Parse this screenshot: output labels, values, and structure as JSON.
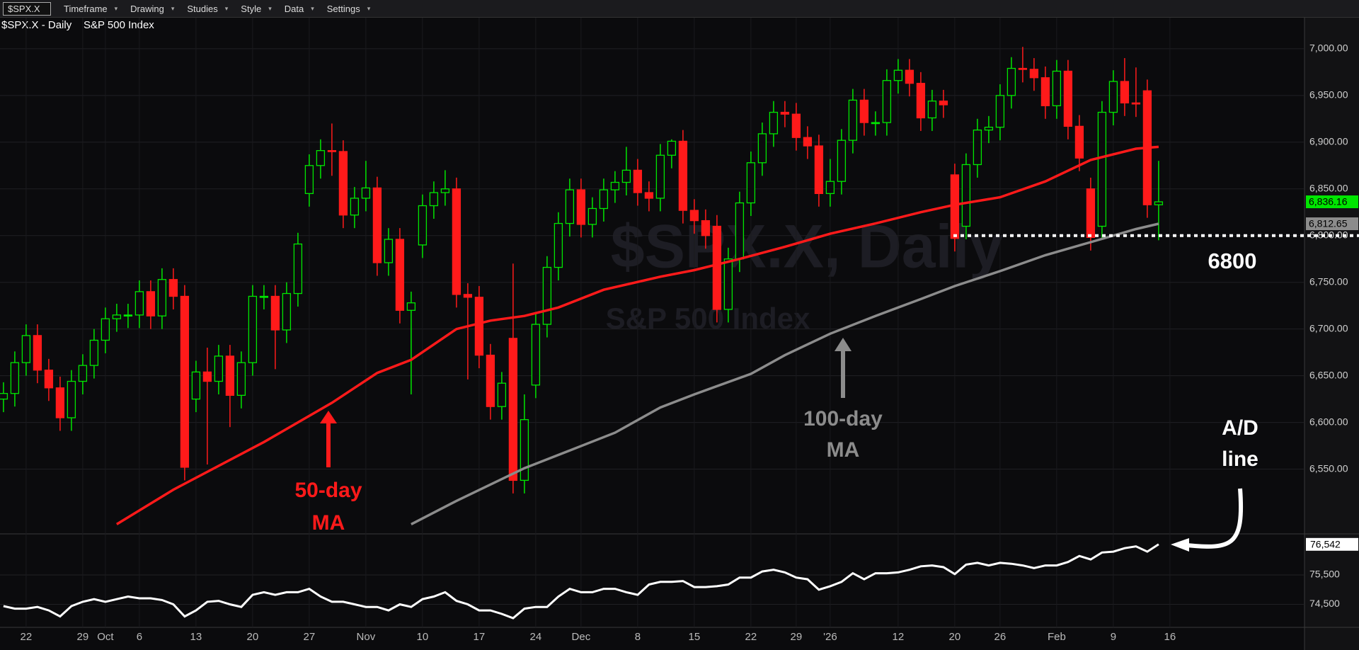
{
  "toolbar": {
    "symbol": "$SPX.X",
    "items": [
      "Timeframe",
      "Drawing",
      "Studies",
      "Style",
      "Data",
      "Settings"
    ]
  },
  "chart_data": [
    {
      "type": "candlestick",
      "title": "$SPX.X - Daily",
      "subtitle": "S&P 500 Index",
      "watermark": "$SPX.X, Daily",
      "categories": [
        null,
        null,
        "22",
        null,
        null,
        null,
        null,
        "29",
        null,
        "Oct",
        null,
        null,
        "6",
        null,
        null,
        null,
        null,
        "13",
        null,
        null,
        null,
        null,
        "20",
        null,
        null,
        null,
        null,
        "27",
        null,
        null,
        null,
        null,
        "Nov",
        null,
        null,
        null,
        null,
        "10",
        null,
        null,
        null,
        null,
        "17",
        null,
        null,
        null,
        null,
        "24",
        null,
        null,
        null,
        "Dec",
        null,
        null,
        null,
        null,
        "8",
        null,
        null,
        null,
        null,
        "15",
        null,
        null,
        null,
        null,
        "22",
        null,
        null,
        null,
        "29",
        null,
        null,
        "'26",
        null,
        null,
        null,
        null,
        null,
        "12",
        null,
        null,
        null,
        null,
        "20",
        null,
        null,
        null,
        "26",
        null,
        null,
        null,
        null,
        "Feb",
        null,
        null,
        null,
        null,
        "9",
        null,
        null,
        null,
        null,
        "16"
      ],
      "open": [
        6625,
        6631,
        6664,
        6693,
        6656,
        6637,
        6605,
        6644,
        6661,
        6688,
        6711,
        6715,
        6715,
        6740,
        6714,
        6753,
        6735,
        6625,
        6654,
        6644,
        6671,
        6629,
        6664,
        6735,
        6735,
        6699,
        6738,
        6845,
        6875,
        6891,
        6890,
        6822,
        6840,
        6851,
        6771,
        6796,
        6720,
        6790,
        6832,
        6846,
        6850,
        6737,
        6734,
        6672,
        6617,
        6690,
        6538,
        6640,
        6705,
        6766,
        6813,
        6849,
        6812,
        6829,
        6849,
        6857,
        6870,
        6846,
        6840,
        6886,
        6901,
        6827,
        6816,
        6810,
        6721,
        6775,
        6835,
        6878,
        6909,
        6932,
        6930,
        6905,
        6896,
        6845,
        6858,
        6902,
        6945,
        6921,
        6921,
        6966,
        6977,
        6963,
        6926,
        6944,
        6865,
        6810,
        6876,
        6913,
        6916,
        6950,
        6979,
        6978,
        6969,
        6939,
        6976,
        6917,
        6850,
        6810,
        6932,
        6965,
        6942,
        6955,
        6833,
        null
      ],
      "high": [
        6643,
        6676,
        6705,
        6705,
        6668,
        6649,
        6656,
        6673,
        6700,
        6723,
        6727,
        6727,
        6752,
        6752,
        6765,
        6765,
        6747,
        6666,
        6680,
        6683,
        6683,
        6676,
        6747,
        6747,
        6747,
        6750,
        6803,
        6887,
        6903,
        6920,
        6902,
        6852,
        6880,
        6863,
        6808,
        6808,
        6740,
        6844,
        6858,
        6870,
        6862,
        6749,
        6746,
        6684,
        6654,
        6770,
        6630,
        6717,
        6778,
        6825,
        6861,
        6861,
        6841,
        6861,
        6869,
        6895,
        6882,
        6858,
        6898,
        6903,
        6913,
        6839,
        6828,
        6822,
        6787,
        6847,
        6890,
        6921,
        6944,
        6944,
        6942,
        6917,
        6908,
        6882,
        6914,
        6957,
        6957,
        6933,
        6978,
        6989,
        6989,
        6975,
        6956,
        6956,
        6877,
        6888,
        6925,
        6928,
        6962,
        6991,
        7002,
        6990,
        6981,
        6988,
        6988,
        6929,
        6862,
        6944,
        6977,
        6990,
        6980,
        6967,
        6880,
        null
      ],
      "low": [
        6611,
        6617,
        6650,
        6642,
        6623,
        6591,
        6591,
        6630,
        6647,
        6674,
        6697,
        6701,
        6701,
        6700,
        6700,
        6721,
        6538,
        6611,
        6555,
        6630,
        6595,
        6615,
        6650,
        6721,
        6657,
        6685,
        6724,
        6831,
        6861,
        6864,
        6808,
        6808,
        6826,
        6757,
        6757,
        6706,
        6630,
        6776,
        6818,
        6832,
        6723,
        6646,
        6658,
        6603,
        6603,
        6524,
        6524,
        6626,
        6691,
        6752,
        6799,
        6798,
        6798,
        6815,
        6835,
        6843,
        6832,
        6826,
        6826,
        6872,
        6813,
        6802,
        6786,
        6707,
        6707,
        6761,
        6821,
        6864,
        6895,
        6916,
        6891,
        6882,
        6831,
        6831,
        6844,
        6888,
        6907,
        6907,
        6907,
        6952,
        6949,
        6912,
        6912,
        6926,
        6783,
        6796,
        6862,
        6899,
        6902,
        6936,
        6964,
        6955,
        6925,
        6925,
        6903,
        6869,
        6784,
        6796,
        6918,
        6928,
        6927,
        6819,
        6795,
        null
      ],
      "close": [
        6631,
        6664,
        6693,
        6656,
        6637,
        6605,
        6644,
        6661,
        6688,
        6711,
        6715,
        6715,
        6740,
        6714,
        6753,
        6735,
        6552,
        6654,
        6644,
        6671,
        6629,
        6664,
        6735,
        6735,
        6699,
        6738,
        6791,
        6875,
        6891,
        6890,
        6822,
        6840,
        6851,
        6771,
        6796,
        6720,
        6728,
        6832,
        6846,
        6850,
        6737,
        6734,
        6672,
        6617,
        6642,
        6538,
        6603,
        6705,
        6766,
        6813,
        6849,
        6812,
        6829,
        6849,
        6857,
        6870,
        6846,
        6840,
        6886,
        6901,
        6827,
        6816,
        6800,
        6721,
        6775,
        6835,
        6878,
        6909,
        6932,
        6930,
        6905,
        6896,
        6845,
        6858,
        6902,
        6945,
        6921,
        6921,
        6966,
        6977,
        6963,
        6926,
        6944,
        6940,
        6797,
        6876,
        6913,
        6916,
        6950,
        6979,
        6978,
        6969,
        6939,
        6976,
        6917,
        6883,
        6798,
        6932,
        6965,
        6942,
        6941,
        6833,
        6836.16,
        null
      ],
      "up_color": "#00e600",
      "down_color": "#ff1a1a",
      "ylim": [
        6486,
        7034
      ],
      "yticks": [
        {
          "value": 6550,
          "label": "6,550.00"
        },
        {
          "value": 6600,
          "label": "6,600.00"
        },
        {
          "value": 6650,
          "label": "6,650.00"
        },
        {
          "value": 6700,
          "label": "6,700.00"
        },
        {
          "value": 6750,
          "label": "6,750.00"
        },
        {
          "value": 6800,
          "label": "6,800.00"
        },
        {
          "value": 6850,
          "label": "6,850.00"
        },
        {
          "value": 6900,
          "label": "6,900.00"
        },
        {
          "value": 6950,
          "label": "6,950.00"
        },
        {
          "value": 7000,
          "label": "7,000.00"
        }
      ],
      "grid": true,
      "series": [
        {
          "label_lines": [
            "50-day",
            "MA"
          ],
          "color": "#ff1a1a",
          "x": [
            10,
            15,
            23,
            29,
            33,
            36,
            40,
            43,
            46,
            49,
            53,
            58,
            61,
            65,
            69,
            73,
            77,
            81,
            84,
            88,
            92,
            96,
            100,
            102
          ],
          "values": [
            6491,
            6528,
            6579,
            6621,
            6653,
            6667,
            6700,
            6709,
            6714,
            6723,
            6742,
            6756,
            6763,
            6775,
            6788,
            6802,
            6813,
            6825,
            6833,
            6841,
            6858,
            6881,
            6893,
            6895
          ]
        },
        {
          "label_lines": [
            "100-day",
            "MA"
          ],
          "color": "#8c8c8c",
          "x": [
            36,
            40,
            46,
            50,
            54,
            58,
            61,
            66,
            69,
            73,
            77,
            81,
            84,
            88,
            92,
            96,
            100,
            102
          ],
          "values": [
            6491,
            6516,
            6551,
            6570,
            6589,
            6616,
            6630,
            6652,
            6672,
            6695,
            6714,
            6732,
            6746,
            6762,
            6779,
            6793,
            6807,
            6812.65
          ]
        }
      ],
      "reference_line": {
        "value": 6800,
        "label": "6800"
      },
      "last_labels": [
        {
          "value": 6836.16,
          "label": "6,836.16",
          "color": "#00e600"
        },
        {
          "value": 6812.65,
          "label": "6,812.65",
          "color": "#8c8c8c"
        }
      ]
    },
    {
      "type": "line",
      "color": "#ffffff",
      "values": [
        74441,
        74353,
        74353,
        74412,
        74294,
        74088,
        74441,
        74588,
        74676,
        74588,
        74676,
        74765,
        74706,
        74706,
        74647,
        74500,
        74088,
        74294,
        74588,
        74618,
        74500,
        74412,
        74824,
        74912,
        74824,
        74912,
        74912,
        75029,
        74765,
        74588,
        74588,
        74500,
        74412,
        74412,
        74294,
        74500,
        74412,
        74676,
        74765,
        74912,
        74618,
        74500,
        74294,
        74294,
        74176,
        74029,
        74353,
        74412,
        74412,
        74765,
        75029,
        74912,
        74912,
        75029,
        75029,
        74912,
        74824,
        75176,
        75265,
        75265,
        75294,
        75088,
        75088,
        75118,
        75176,
        75412,
        75412,
        75618,
        75676,
        75588,
        75412,
        75353,
        75000,
        75118,
        75265,
        75559,
        75353,
        75559,
        75559,
        75588,
        75676,
        75794,
        75824,
        75765,
        75529,
        75853,
        75912,
        75824,
        75912,
        75882,
        75824,
        75735,
        75824,
        75824,
        75941,
        76147,
        76029,
        76265,
        76294,
        76412,
        76471,
        76294,
        76542,
        null
      ],
      "ylim": [
        73765,
        76706
      ],
      "yticks": [
        {
          "value": 74500,
          "label": "74,500"
        },
        {
          "value": 75500,
          "label": "75,500"
        }
      ],
      "grid": true,
      "annotation_lines": [
        "A/D",
        "line"
      ],
      "last_label": {
        "value": 76542,
        "label": "76,542",
        "color": "#ffffff"
      }
    }
  ]
}
